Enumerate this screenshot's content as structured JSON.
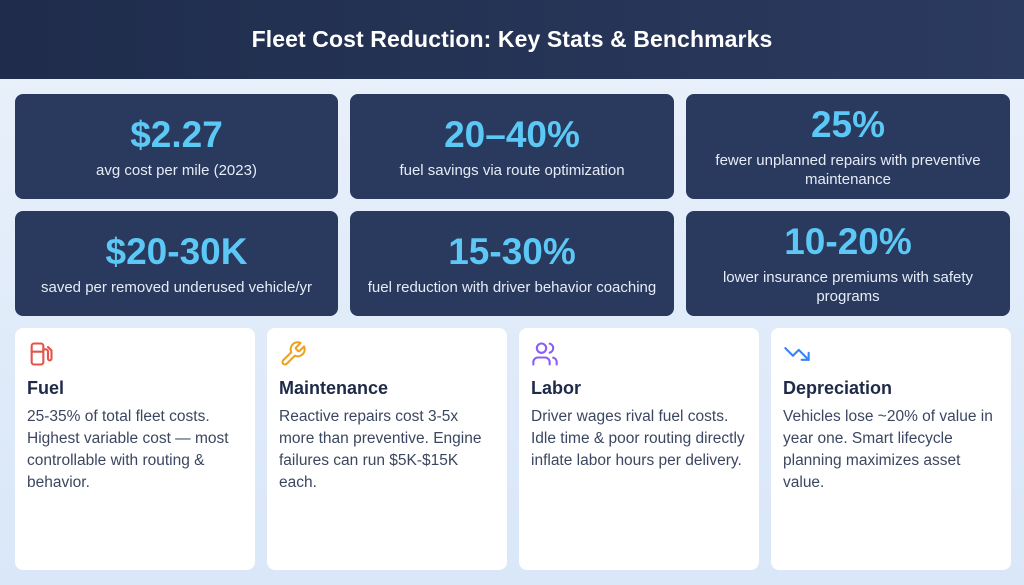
{
  "header": {
    "title": "Fleet Cost Reduction: Key Stats & Benchmarks"
  },
  "stats": [
    {
      "value": "$2.27",
      "label": "avg cost per mile (2023)"
    },
    {
      "value": "20–40%",
      "label": "fuel savings via route optimization"
    },
    {
      "value": "25%",
      "label": "fewer unplanned repairs with preventive maintenance"
    },
    {
      "value": "$20-30K",
      "label": "saved per removed underused vehicle/yr"
    },
    {
      "value": "15-30%",
      "label": "fuel reduction with driver behavior coaching"
    },
    {
      "value": "10-20%",
      "label": "lower insurance premiums with safety programs"
    }
  ],
  "categories": [
    {
      "icon": "fuel-pump-icon",
      "color": "#e5534b",
      "title": "Fuel",
      "text": "25-35% of total fleet costs. Highest variable cost — most controllable with routing & behavior."
    },
    {
      "icon": "wrench-icon",
      "color": "#f0a020",
      "title": "Maintenance",
      "text": "Reactive repairs cost 3-5x more than preventive. Engine failures can run $5K-$15K each."
    },
    {
      "icon": "users-icon",
      "color": "#8b5cf6",
      "title": "Labor",
      "text": "Driver wages rival fuel costs. Idle time & poor routing directly inflate labor hours per delivery."
    },
    {
      "icon": "trending-down-icon",
      "color": "#3b82f6",
      "title": "Depreciation",
      "text": "Vehicles lose ~20% of value in year one. Smart lifecycle planning maximizes asset value."
    }
  ],
  "colors": {
    "header_bg": "#1f2c4c",
    "stat_card_bg": "#2a3a5e",
    "stat_value": "#5cc8f5"
  }
}
